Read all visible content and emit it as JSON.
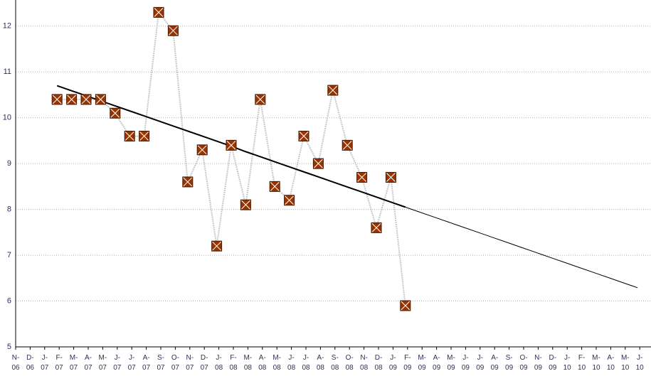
{
  "chart_data": {
    "type": "line",
    "categories": [
      "N-\n06",
      "D-\n06",
      "J-\n07",
      "F-\n07",
      "M-\n07",
      "A-\n07",
      "M-\n07",
      "J-\n07",
      "J-\n07",
      "A-\n07",
      "S-\n07",
      "O-\n07",
      "N-\n07",
      "D-\n07",
      "J-\n08",
      "F-\n08",
      "M-\n08",
      "A-\n08",
      "M-\n08",
      "J-\n08",
      "J-\n08",
      "A-\n08",
      "S-\n08",
      "O-\n08",
      "N-\n08",
      "D-\n08",
      "J-\n09",
      "F-\n09",
      "M-\n09",
      "A-\n09",
      "M-\n09",
      "J-\n09",
      "J-\n09",
      "A-\n09",
      "S-\n09",
      "O-\n09",
      "N-\n09",
      "D-\n09",
      "J-\n10",
      "F-\n10",
      "M-\n10",
      "A-\n10",
      "M-\n10",
      "J-\n10"
    ],
    "series": [
      {
        "color": "#993300",
        "line_color": "#c8c8c8",
        "values": [
          null,
          null,
          null,
          10.4,
          10.4,
          10.4,
          10.4,
          10.1,
          9.6,
          9.6,
          12.3,
          11.9,
          8.6,
          9.3,
          7.2,
          9.4,
          8.1,
          10.4,
          8.5,
          8.2,
          9.6,
          9.0,
          10.6,
          9.4,
          8.7,
          7.6,
          8.7,
          5.9,
          null,
          null,
          null,
          null,
          null,
          null,
          null,
          null,
          null,
          null,
          null,
          null,
          null,
          null,
          null,
          null
        ]
      },
      {
        "color": "#000000",
        "width": 2,
        "values": [
          null,
          null,
          null,
          10.7,
          10.59,
          10.48,
          10.37,
          10.26,
          10.15,
          10.04,
          9.93,
          9.82,
          9.71,
          9.6,
          9.49,
          9.38,
          9.26,
          9.15,
          9.04,
          8.93,
          8.82,
          8.71,
          8.6,
          8.49,
          8.38,
          8.27,
          8.16,
          8.05,
          null,
          null,
          null,
          null,
          null,
          null,
          null,
          null,
          null,
          null,
          null,
          null,
          null,
          null,
          null,
          null
        ]
      },
      {
        "color": "#000000",
        "width": 1,
        "values": [
          null,
          null,
          null,
          null,
          null,
          null,
          null,
          null,
          null,
          null,
          null,
          null,
          null,
          null,
          null,
          null,
          null,
          null,
          null,
          null,
          null,
          null,
          null,
          null,
          null,
          null,
          null,
          8.05,
          7.94,
          7.83,
          7.72,
          7.61,
          7.5,
          7.39,
          7.28,
          7.17,
          7.06,
          6.95,
          6.84,
          6.73,
          6.62,
          6.51,
          6.4,
          6.29
        ]
      }
    ],
    "ylim": [
      5,
      12.57
    ],
    "yticks": [
      5,
      6,
      7,
      8,
      9,
      10,
      11,
      12
    ],
    "grid": true
  }
}
